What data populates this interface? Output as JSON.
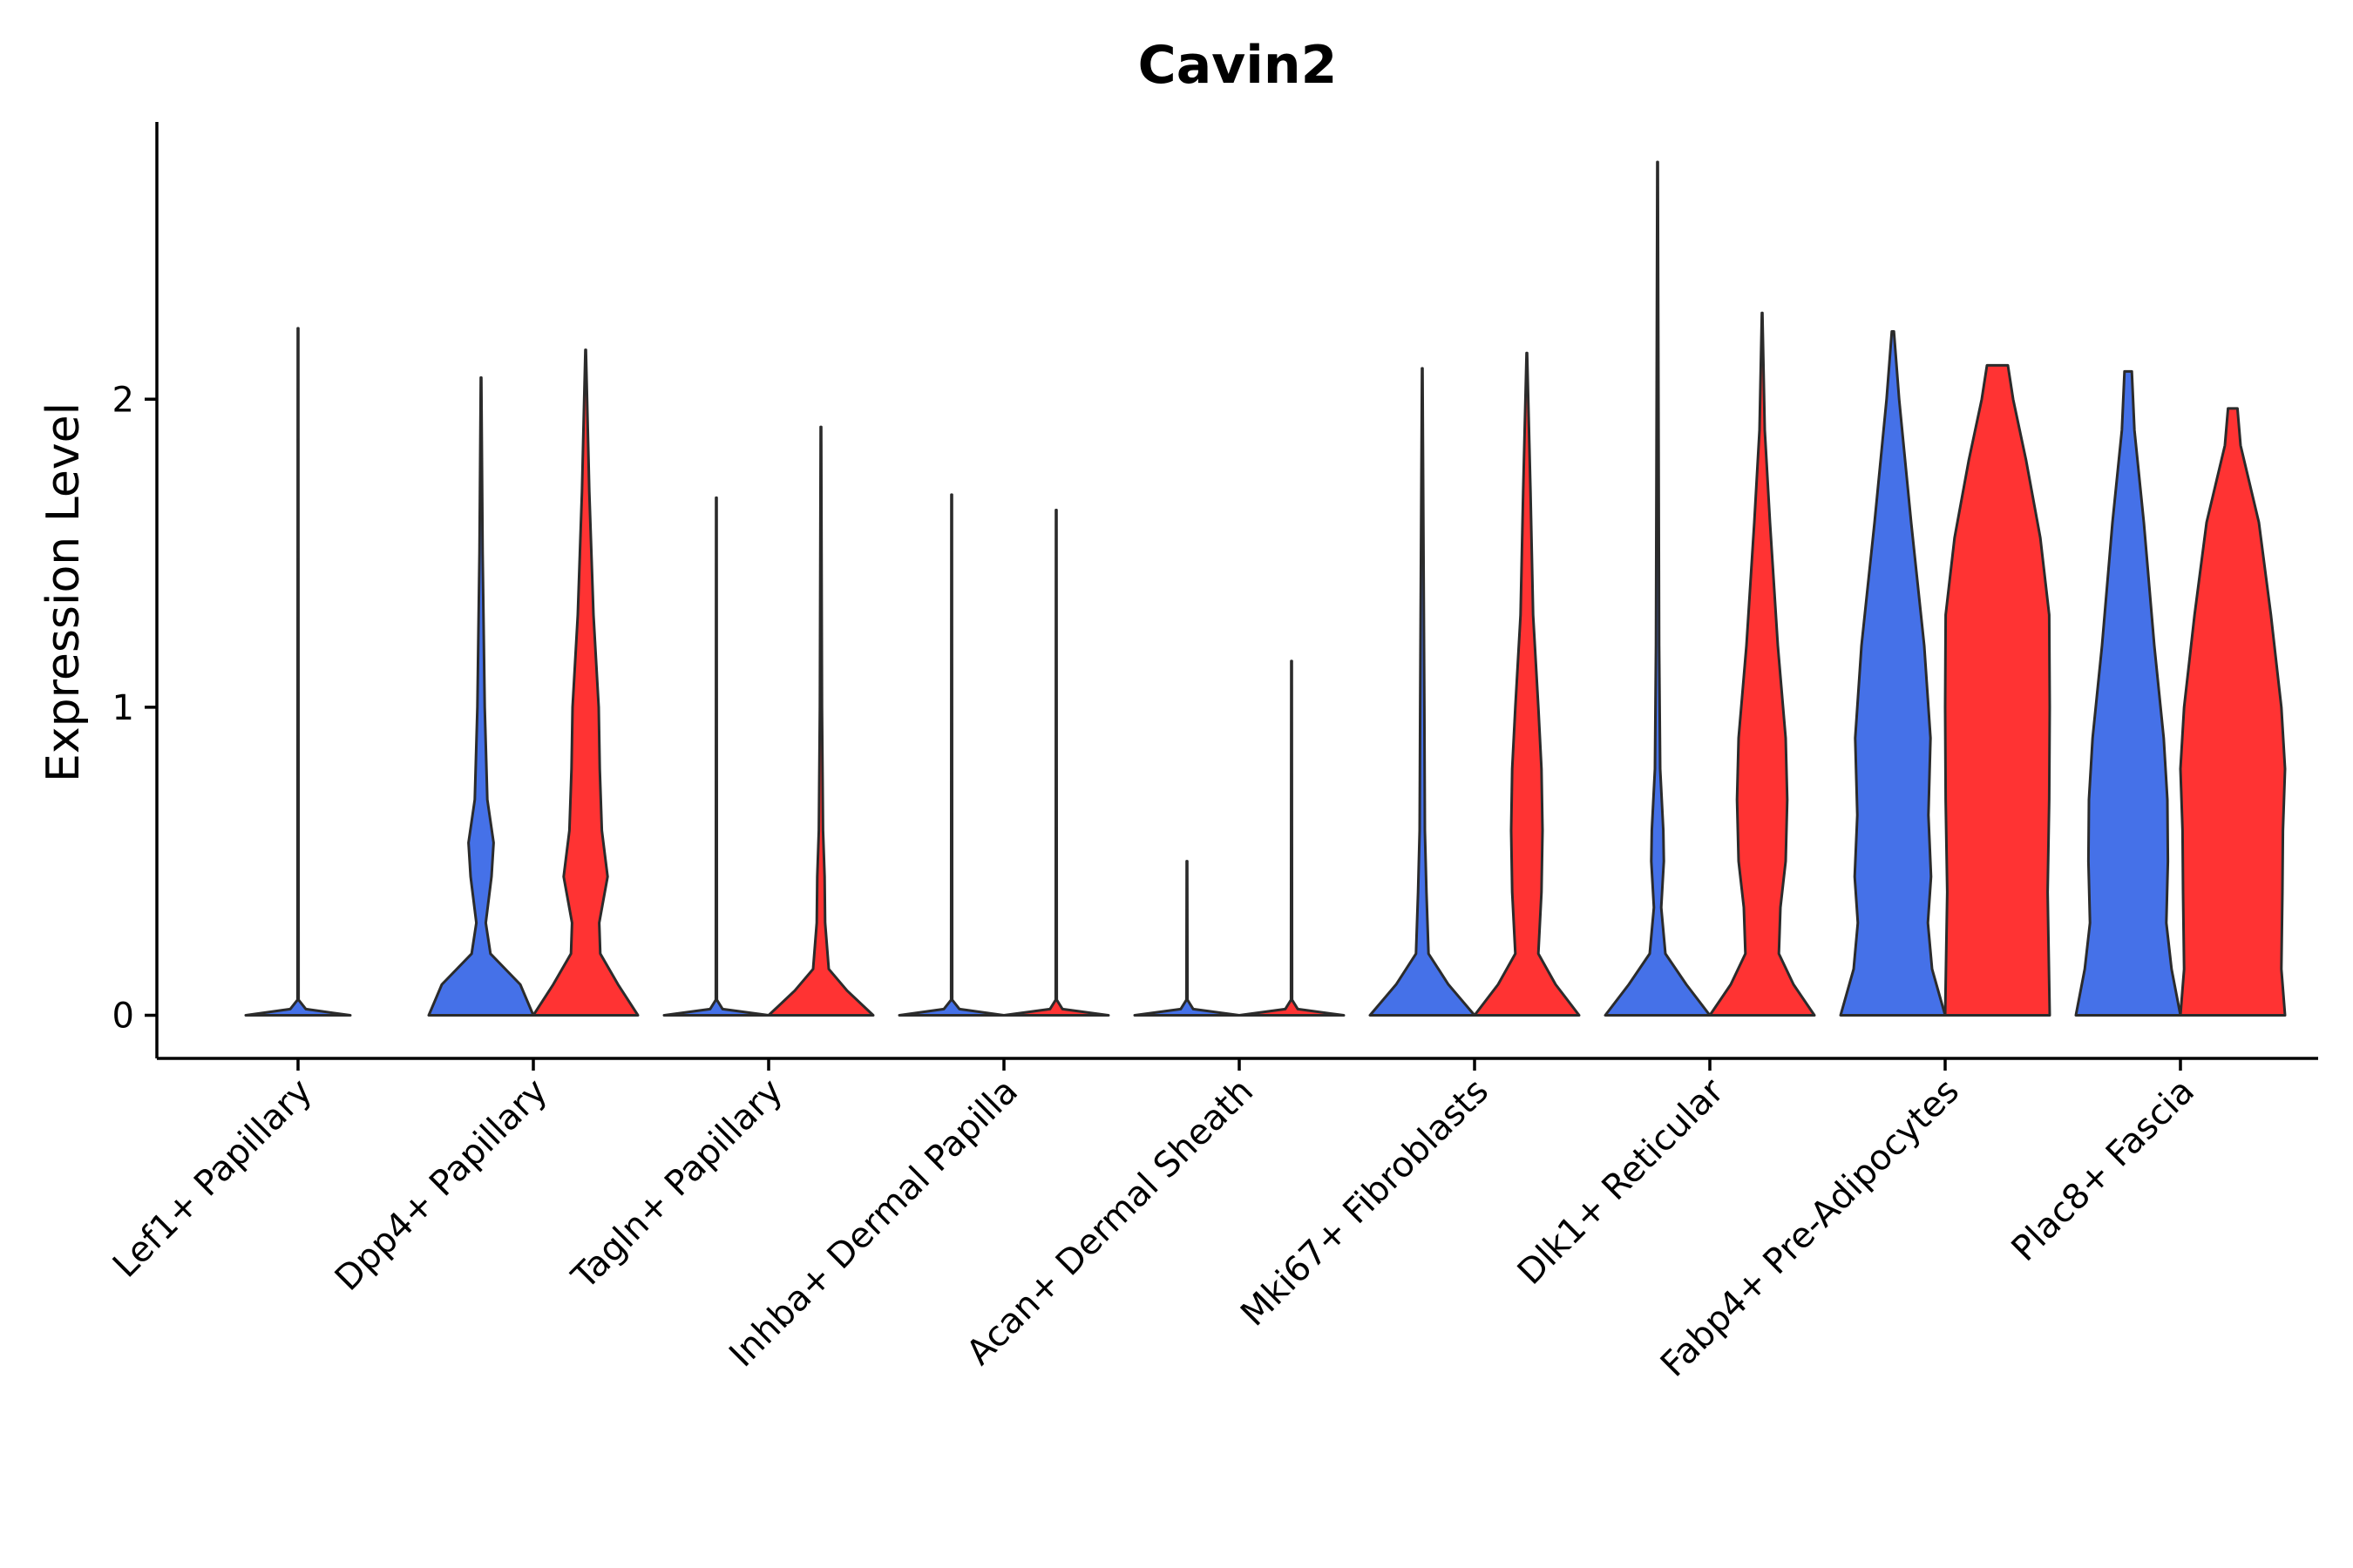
{
  "chart_data": {
    "type": "violin",
    "title": "Cavin2",
    "xlabel": "",
    "ylabel": "Expression Level",
    "ylim": [
      -0.14,
      2.9
    ],
    "yticks": [
      0,
      1,
      2
    ],
    "grid": false,
    "legend": "none",
    "colors": {
      "group_a": "#4571E8",
      "group_b": "#FF3333",
      "outline": "#2B2B2B"
    },
    "categories": [
      "Lef1+ Papillary",
      "Dpp4+ Papillary",
      "Tagln+ Papillary",
      "Inhba+ Dermal Papilla",
      "Acan+ Dermal Sheath",
      "Mki67+ Fibroblasts",
      "Dlk1+ Reticular",
      "Fabp4+ Pre-Adipocytes",
      "Plac8+ Fascia"
    ],
    "series": [
      {
        "name": "group_a",
        "color": "#4571E8",
        "max_values": [
          2.23,
          2.07,
          1.68,
          1.69,
          0.5,
          2.1,
          2.77,
          2.22,
          2.09
        ],
        "density": [
          [
            [
              0,
              1
            ],
            [
              0.02,
              0.15
            ],
            [
              0.05,
              0.01
            ],
            [
              2.23,
              0.005
            ]
          ],
          [
            [
              0,
              1
            ],
            [
              0.1,
              0.75
            ],
            [
              0.2,
              0.18
            ],
            [
              0.3,
              0.09
            ],
            [
              0.45,
              0.2
            ],
            [
              0.56,
              0.24
            ],
            [
              0.7,
              0.12
            ],
            [
              1.0,
              0.07
            ],
            [
              1.5,
              0.03
            ],
            [
              2.07,
              0.005
            ]
          ],
          [
            [
              0,
              1
            ],
            [
              0.02,
              0.12
            ],
            [
              0.05,
              0.01
            ],
            [
              1.68,
              0.005
            ]
          ],
          [
            [
              0,
              1
            ],
            [
              0.02,
              0.15
            ],
            [
              0.05,
              0.01
            ],
            [
              1.69,
              0.005
            ]
          ],
          [
            [
              0,
              1
            ],
            [
              0.02,
              0.12
            ],
            [
              0.05,
              0.01
            ],
            [
              0.5,
              0.005
            ]
          ],
          [
            [
              0,
              1
            ],
            [
              0.1,
              0.5
            ],
            [
              0.2,
              0.12
            ],
            [
              0.4,
              0.08
            ],
            [
              0.6,
              0.05
            ],
            [
              1.0,
              0.04
            ],
            [
              2.1,
              0.005
            ]
          ],
          [
            [
              0,
              1
            ],
            [
              0.1,
              0.55
            ],
            [
              0.2,
              0.15
            ],
            [
              0.35,
              0.07
            ],
            [
              0.5,
              0.12
            ],
            [
              0.6,
              0.11
            ],
            [
              0.8,
              0.05
            ],
            [
              1.2,
              0.03
            ],
            [
              2.77,
              0.005
            ]
          ],
          [
            [
              0,
              1
            ],
            [
              0.15,
              0.75
            ],
            [
              0.3,
              0.67
            ],
            [
              0.45,
              0.73
            ],
            [
              0.65,
              0.68
            ],
            [
              0.9,
              0.72
            ],
            [
              1.2,
              0.6
            ],
            [
              1.6,
              0.35
            ],
            [
              2.0,
              0.12
            ],
            [
              2.22,
              0.02
            ]
          ],
          [
            [
              0,
              1
            ],
            [
              0.15,
              0.83
            ],
            [
              0.3,
              0.73
            ],
            [
              0.5,
              0.76
            ],
            [
              0.7,
              0.75
            ],
            [
              0.9,
              0.68
            ],
            [
              1.2,
              0.5
            ],
            [
              1.6,
              0.3
            ],
            [
              1.9,
              0.12
            ],
            [
              2.09,
              0.07
            ]
          ]
        ]
      },
      {
        "name": "group_b",
        "color": "#FF3333",
        "max_values": [
          null,
          2.16,
          1.91,
          1.64,
          1.15,
          2.15,
          2.28,
          2.11,
          1.97
        ],
        "density": [
          null,
          [
            [
              0,
              1
            ],
            [
              0.1,
              0.62
            ],
            [
              0.2,
              0.28
            ],
            [
              0.3,
              0.26
            ],
            [
              0.45,
              0.42
            ],
            [
              0.6,
              0.31
            ],
            [
              0.8,
              0.27
            ],
            [
              1.0,
              0.25
            ],
            [
              1.3,
              0.15
            ],
            [
              1.7,
              0.07
            ],
            [
              2.16,
              0.005
            ]
          ],
          [
            [
              0,
              1
            ],
            [
              0.08,
              0.5
            ],
            [
              0.15,
              0.15
            ],
            [
              0.3,
              0.08
            ],
            [
              0.45,
              0.07
            ],
            [
              0.6,
              0.04
            ],
            [
              1.0,
              0.02
            ],
            [
              1.91,
              0.005
            ]
          ],
          [
            [
              0,
              1
            ],
            [
              0.02,
              0.12
            ],
            [
              0.05,
              0.01
            ],
            [
              1.64,
              0.005
            ]
          ],
          [
            [
              0,
              1
            ],
            [
              0.02,
              0.12
            ],
            [
              0.05,
              0.01
            ],
            [
              1.15,
              0.005
            ]
          ],
          [
            [
              0,
              1
            ],
            [
              0.1,
              0.55
            ],
            [
              0.2,
              0.22
            ],
            [
              0.4,
              0.28
            ],
            [
              0.6,
              0.3
            ],
            [
              0.8,
              0.28
            ],
            [
              1.0,
              0.22
            ],
            [
              1.3,
              0.12
            ],
            [
              1.7,
              0.07
            ],
            [
              2.15,
              0.005
            ]
          ],
          [
            [
              0,
              1
            ],
            [
              0.1,
              0.6
            ],
            [
              0.2,
              0.32
            ],
            [
              0.35,
              0.35
            ],
            [
              0.5,
              0.45
            ],
            [
              0.7,
              0.48
            ],
            [
              0.9,
              0.45
            ],
            [
              1.2,
              0.3
            ],
            [
              1.6,
              0.15
            ],
            [
              1.9,
              0.05
            ],
            [
              2.28,
              0.005
            ]
          ],
          [
            [
              0,
              1
            ],
            [
              0.2,
              0.98
            ],
            [
              0.4,
              0.96
            ],
            [
              0.7,
              0.99
            ],
            [
              1.0,
              1.0
            ],
            [
              1.3,
              0.99
            ],
            [
              1.55,
              0.82
            ],
            [
              1.8,
              0.55
            ],
            [
              2.0,
              0.3
            ],
            [
              2.11,
              0.2
            ]
          ],
          [
            [
              0,
              1
            ],
            [
              0.15,
              0.93
            ],
            [
              0.4,
              0.95
            ],
            [
              0.6,
              0.96
            ],
            [
              0.8,
              1.0
            ],
            [
              1.0,
              0.93
            ],
            [
              1.3,
              0.73
            ],
            [
              1.6,
              0.5
            ],
            [
              1.85,
              0.15
            ],
            [
              1.97,
              0.09
            ]
          ]
        ]
      }
    ]
  }
}
